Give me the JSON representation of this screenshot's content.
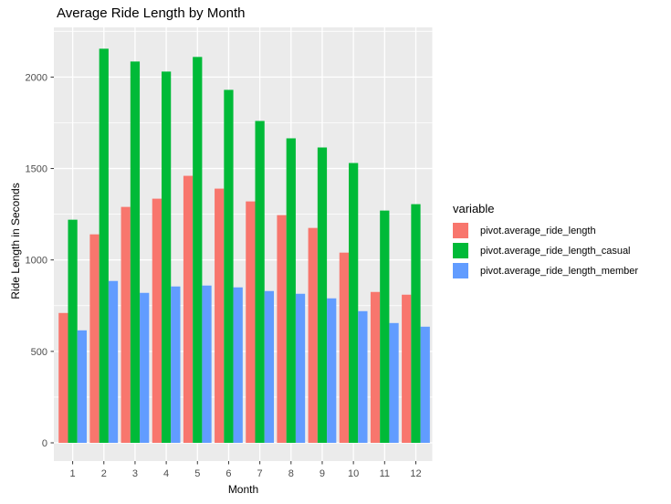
{
  "chart_data": {
    "type": "bar",
    "title": "Average Ride Length by Month",
    "xlabel": "Month",
    "ylabel": "Ride Length in Seconds",
    "categories": [
      "1",
      "2",
      "3",
      "4",
      "5",
      "6",
      "7",
      "8",
      "9",
      "10",
      "11",
      "12"
    ],
    "series": [
      {
        "name": "pivot.average_ride_length",
        "color": "#F8766D",
        "values": [
          710,
          1140,
          1290,
          1335,
          1460,
          1390,
          1320,
          1245,
          1175,
          1040,
          825,
          810
        ]
      },
      {
        "name": "pivot.average_ride_length_casual",
        "color": "#00BA38",
        "values": [
          1220,
          2155,
          2085,
          2030,
          2110,
          1930,
          1760,
          1665,
          1615,
          1530,
          1270,
          1305
        ]
      },
      {
        "name": "pivot.average_ride_length_member",
        "color": "#619CFF",
        "values": [
          615,
          885,
          820,
          855,
          860,
          850,
          830,
          815,
          790,
          720,
          655,
          635
        ]
      }
    ],
    "legend": {
      "title": "variable",
      "position": "right"
    },
    "yticks": [
      0,
      500,
      1000,
      1500,
      2000
    ],
    "yticks_minor": [
      250,
      750,
      1250,
      1750,
      2250
    ],
    "ylim": [
      0,
      2270
    ],
    "grid": true,
    "panel_bg": "#EBEBEB",
    "grid_color": "#FFFFFF",
    "tick_label_color": "#4D4D4D",
    "tick_mark_color": "#333333"
  }
}
